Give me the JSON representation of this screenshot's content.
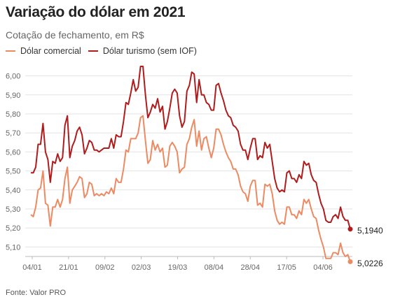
{
  "title": "Variação do dólar em 2021",
  "subtitle": "Cotação de fechamento, em R$",
  "source": "Fonte: Valor PRO",
  "chart_data": {
    "type": "line",
    "ylim": [
      5.05,
      6.05
    ],
    "yticks": [
      "6,00",
      "5,90",
      "5,80",
      "5,70",
      "5,60",
      "5,50",
      "5,40",
      "5,30",
      "5,20",
      "5,10"
    ],
    "ytick_values": [
      6.0,
      5.9,
      5.8,
      5.7,
      5.6,
      5.5,
      5.4,
      5.3,
      5.2,
      5.1
    ],
    "xticks": [
      "04/01",
      "21/01",
      "09/02",
      "02/03",
      "19/03",
      "08/04",
      "28/04",
      "17/05",
      "04/06"
    ],
    "grid": true,
    "series": [
      {
        "name": "Dólar comercial",
        "color": "#ee8a62",
        "end_label": "5,0226",
        "values": [
          5.27,
          5.26,
          5.31,
          5.4,
          5.41,
          5.5,
          5.33,
          5.32,
          5.21,
          5.31,
          5.31,
          5.35,
          5.31,
          5.35,
          5.46,
          5.52,
          5.33,
          5.4,
          5.42,
          5.44,
          5.47,
          5.46,
          5.36,
          5.38,
          5.44,
          5.43,
          5.37,
          5.38,
          5.37,
          5.38,
          5.37,
          5.39,
          5.38,
          5.41,
          5.38,
          5.46,
          5.44,
          5.44,
          5.51,
          5.61,
          5.6,
          5.67,
          5.67,
          5.67,
          5.7,
          5.78,
          5.79,
          5.66,
          5.54,
          5.56,
          5.66,
          5.61,
          5.64,
          5.6,
          5.62,
          5.52,
          5.53,
          5.63,
          5.65,
          5.63,
          5.6,
          5.49,
          5.51,
          5.52,
          5.64,
          5.67,
          5.73,
          5.77,
          5.63,
          5.71,
          5.61,
          5.67,
          5.68,
          5.62,
          5.57,
          5.62,
          5.72,
          5.72,
          5.69,
          5.64,
          5.6,
          5.57,
          5.55,
          5.51,
          5.51,
          5.48,
          5.42,
          5.39,
          5.38,
          5.34,
          5.42,
          5.45,
          5.45,
          5.32,
          5.33,
          5.31,
          5.43,
          5.42,
          5.43,
          5.38,
          5.29,
          5.24,
          5.22,
          5.23,
          5.22,
          5.31,
          5.31,
          5.27,
          5.27,
          5.25,
          5.29,
          5.27,
          5.35,
          5.33,
          5.35,
          5.3,
          5.26,
          5.25,
          5.19,
          5.14,
          5.1,
          5.04,
          5.04,
          5.04,
          5.07,
          5.07,
          5.06,
          5.12,
          5.07,
          5.05,
          5.06,
          5.0226
        ]
      },
      {
        "name": "Dólar turismo (sem IOF)",
        "color": "#b01c1c",
        "end_label": "5,1940",
        "values": [
          5.49,
          5.49,
          5.52,
          5.64,
          5.64,
          5.75,
          5.6,
          5.56,
          5.44,
          5.55,
          5.54,
          5.59,
          5.55,
          5.57,
          5.74,
          5.79,
          5.57,
          5.63,
          5.66,
          5.71,
          5.73,
          5.69,
          5.59,
          5.62,
          5.66,
          5.65,
          5.61,
          5.61,
          5.6,
          5.61,
          5.62,
          5.62,
          5.62,
          5.67,
          5.62,
          5.69,
          5.68,
          5.68,
          5.76,
          5.86,
          5.85,
          5.91,
          5.98,
          5.92,
          5.94,
          6.05,
          6.05,
          5.9,
          5.78,
          5.81,
          5.85,
          5.83,
          5.88,
          5.81,
          5.84,
          5.72,
          5.76,
          5.83,
          5.91,
          5.93,
          5.91,
          5.79,
          5.73,
          5.76,
          5.92,
          5.95,
          6.02,
          6.01,
          5.86,
          5.98,
          5.9,
          5.9,
          5.86,
          5.85,
          5.82,
          5.82,
          5.95,
          5.96,
          5.91,
          5.87,
          5.82,
          5.79,
          5.78,
          5.74,
          5.73,
          5.71,
          5.64,
          5.61,
          5.61,
          5.56,
          5.62,
          5.67,
          5.67,
          5.56,
          5.58,
          5.57,
          5.65,
          5.62,
          5.64,
          5.55,
          5.46,
          5.41,
          5.39,
          5.4,
          5.39,
          5.49,
          5.5,
          5.46,
          5.46,
          5.44,
          5.48,
          5.46,
          5.55,
          5.53,
          5.54,
          5.48,
          5.45,
          5.44,
          5.38,
          5.33,
          5.3,
          5.24,
          5.23,
          5.23,
          5.26,
          5.27,
          5.25,
          5.31,
          5.26,
          5.24,
          5.24,
          5.194
        ]
      }
    ]
  }
}
